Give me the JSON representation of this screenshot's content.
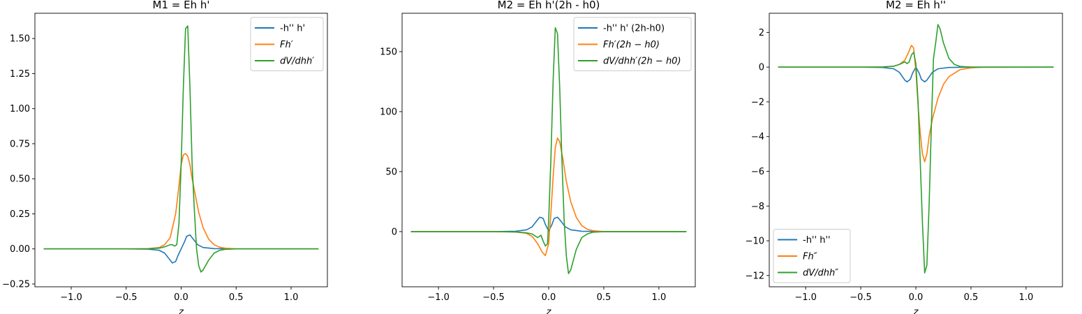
{
  "chart_data": [
    {
      "type": "line",
      "title": "M1 = Eh h'",
      "xlabel": "z",
      "ylabel": "",
      "xlim": [
        -1.33,
        1.33
      ],
      "ylim": [
        -0.27,
        1.68
      ],
      "xticks": [
        -1.0,
        -0.5,
        0.0,
        0.5,
        1.0
      ],
      "xtick_labels": [
        "−1.0",
        "−0.5",
        "0.0",
        "0.5",
        "1.0"
      ],
      "yticks": [
        -0.25,
        0.0,
        0.25,
        0.5,
        0.75,
        1.0,
        1.25,
        1.5
      ],
      "ytick_labels": [
        "−0.25",
        "0.00",
        "0.25",
        "0.50",
        "0.75",
        "1.00",
        "1.25",
        "1.50"
      ],
      "grid": false,
      "legend_position": "top-right",
      "series": [
        {
          "name": "-h'' h'",
          "color": "#1f77b4",
          "x": [
            -1.25,
            -0.5,
            -0.3,
            -0.2,
            -0.15,
            -0.1,
            -0.08,
            -0.05,
            -0.03,
            0.0,
            0.03,
            0.05,
            0.08,
            0.1,
            0.15,
            0.2,
            0.3,
            0.5,
            1.25
          ],
          "y": [
            0,
            0,
            -0.002,
            -0.01,
            -0.03,
            -0.08,
            -0.1,
            -0.09,
            -0.05,
            0,
            0.05,
            0.09,
            0.1,
            0.08,
            0.03,
            0.01,
            0.002,
            0,
            0
          ]
        },
        {
          "name": "Fh′",
          "color": "#ff7f0e",
          "x": [
            -1.25,
            -0.5,
            -0.3,
            -0.2,
            -0.15,
            -0.1,
            -0.05,
            -0.02,
            0.0,
            0.02,
            0.04,
            0.06,
            0.08,
            0.1,
            0.13,
            0.16,
            0.2,
            0.25,
            0.3,
            0.35,
            0.4,
            0.5,
            1.25
          ],
          "y": [
            0,
            0,
            0.002,
            0.01,
            0.03,
            0.08,
            0.25,
            0.45,
            0.6,
            0.67,
            0.68,
            0.66,
            0.6,
            0.5,
            0.38,
            0.26,
            0.15,
            0.07,
            0.03,
            0.012,
            0.005,
            0,
            0
          ]
        },
        {
          "name": "dV/dhh′",
          "color": "#2ca02c",
          "x": [
            -1.25,
            -0.5,
            -0.3,
            -0.2,
            -0.15,
            -0.1,
            -0.08,
            -0.06,
            -0.04,
            -0.02,
            0.0,
            0.02,
            0.04,
            0.06,
            0.08,
            0.1,
            0.12,
            0.14,
            0.16,
            0.18,
            0.2,
            0.25,
            0.3,
            0.35,
            0.4,
            0.5,
            1.25
          ],
          "y": [
            0,
            0,
            0.001,
            0.005,
            0.015,
            0.03,
            0.03,
            0.02,
            0.03,
            0.18,
            0.6,
            1.15,
            1.57,
            1.59,
            1.15,
            0.6,
            0.28,
            0.0,
            -0.12,
            -0.165,
            -0.15,
            -0.08,
            -0.03,
            -0.01,
            -0.003,
            0,
            0
          ]
        }
      ]
    },
    {
      "type": "line",
      "title": "M2 = Eh h'(2h - h0)",
      "xlabel": "z",
      "ylabel": "",
      "xlim": [
        -1.33,
        1.33
      ],
      "ylim": [
        -46,
        182
      ],
      "xticks": [
        -1.0,
        -0.5,
        0.0,
        0.5,
        1.0
      ],
      "xtick_labels": [
        "−1.0",
        "−0.5",
        "0.0",
        "0.5",
        "1.0"
      ],
      "yticks": [
        0,
        50,
        100,
        150
      ],
      "ytick_labels": [
        "0",
        "50",
        "100",
        "150"
      ],
      "grid": false,
      "legend_position": "top-right",
      "series": [
        {
          "name": "-h'' h' (2h-h0)",
          "color": "#1f77b4",
          "x": [
            -1.25,
            -0.5,
            -0.3,
            -0.2,
            -0.15,
            -0.1,
            -0.08,
            -0.05,
            -0.03,
            0.0,
            0.03,
            0.05,
            0.08,
            0.1,
            0.15,
            0.2,
            0.3,
            0.5,
            1.25
          ],
          "y": [
            0,
            0,
            0.3,
            1.5,
            4,
            10,
            12,
            11,
            6,
            0.5,
            6,
            11,
            12,
            10,
            4,
            1.5,
            0.3,
            0,
            0
          ]
        },
        {
          "name": "Fh′(2h − h0)",
          "color": "#ff7f0e",
          "x": [
            -1.25,
            -0.5,
            -0.3,
            -0.2,
            -0.15,
            -0.1,
            -0.06,
            -0.03,
            0.0,
            0.02,
            0.04,
            0.06,
            0.08,
            0.1,
            0.13,
            0.16,
            0.2,
            0.25,
            0.3,
            0.35,
            0.4,
            0.5,
            1.25
          ],
          "y": [
            0,
            0,
            -0.3,
            -1.5,
            -4,
            -10,
            -17,
            -20,
            -10,
            15,
            45,
            70,
            78,
            75,
            60,
            42,
            25,
            12,
            5,
            2,
            0.8,
            0,
            0
          ]
        },
        {
          "name": "dV/dhh′(2h − h0)",
          "color": "#2ca02c",
          "x": [
            -1.25,
            -0.5,
            -0.3,
            -0.2,
            -0.15,
            -0.1,
            -0.07,
            -0.05,
            -0.03,
            -0.01,
            0.0,
            0.02,
            0.04,
            0.06,
            0.08,
            0.1,
            0.12,
            0.14,
            0.16,
            0.18,
            0.2,
            0.25,
            0.3,
            0.35,
            0.4,
            0.5,
            1.25
          ],
          "y": [
            0,
            0,
            -0.3,
            -1,
            -2,
            -5,
            -3,
            -8,
            -12,
            -10,
            10,
            60,
            125,
            170,
            165,
            120,
            60,
            10,
            -20,
            -35,
            -32,
            -15,
            -5,
            -2,
            -0.5,
            0,
            0
          ]
        }
      ]
    },
    {
      "type": "line",
      "title": "M2 = Eh h''",
      "xlabel": "z",
      "ylabel": "",
      "xlim": [
        -1.33,
        1.33
      ],
      "ylim": [
        -12.65,
        3.1
      ],
      "xticks": [
        -1.0,
        -0.5,
        0.0,
        0.5,
        1.0
      ],
      "xtick_labels": [
        "−1.0",
        "−0.5",
        "0.0",
        "0.5",
        "1.0"
      ],
      "yticks": [
        -12,
        -10,
        -8,
        -6,
        -4,
        -2,
        0,
        2
      ],
      "ytick_labels": [
        "−12",
        "−10",
        "−8",
        "−6",
        "−4",
        "−2",
        "0",
        "2"
      ],
      "grid": false,
      "legend_position": "bottom-left",
      "series": [
        {
          "name": "-h'' h''",
          "color": "#1f77b4",
          "x": [
            -1.25,
            -0.5,
            -0.3,
            -0.2,
            -0.15,
            -0.1,
            -0.08,
            -0.05,
            -0.03,
            0.0,
            0.03,
            0.05,
            0.08,
            0.1,
            0.15,
            0.2,
            0.3,
            0.5,
            1.25
          ],
          "y": [
            0,
            0,
            -0.02,
            -0.1,
            -0.3,
            -0.75,
            -0.85,
            -0.7,
            -0.35,
            0,
            -0.35,
            -0.7,
            -0.85,
            -0.75,
            -0.3,
            -0.1,
            -0.02,
            0,
            0
          ]
        },
        {
          "name": "Fh″",
          "color": "#ff7f0e",
          "x": [
            -1.25,
            -0.5,
            -0.3,
            -0.2,
            -0.15,
            -0.1,
            -0.07,
            -0.04,
            -0.02,
            0.0,
            0.02,
            0.04,
            0.06,
            0.08,
            0.1,
            0.12,
            0.15,
            0.2,
            0.25,
            0.3,
            0.4,
            0.5,
            0.6,
            1.25
          ],
          "y": [
            0,
            0,
            0.01,
            0.05,
            0.15,
            0.4,
            0.8,
            1.25,
            1.1,
            -0.2,
            -2.2,
            -3.8,
            -5.0,
            -5.45,
            -5.0,
            -4.0,
            -3.0,
            -1.8,
            -1.0,
            -0.55,
            -0.15,
            -0.04,
            -0.01,
            0
          ]
        },
        {
          "name": "dV/dhh″",
          "color": "#2ca02c",
          "x": [
            -1.25,
            -0.5,
            -0.3,
            -0.2,
            -0.15,
            -0.1,
            -0.08,
            -0.06,
            -0.04,
            -0.02,
            0.0,
            0.02,
            0.04,
            0.06,
            0.08,
            0.1,
            0.12,
            0.14,
            0.16,
            0.18,
            0.2,
            0.22,
            0.25,
            0.3,
            0.35,
            0.4,
            0.5,
            1.25
          ],
          "y": [
            0,
            0,
            0.01,
            0.05,
            0.15,
            0.3,
            0.2,
            0.3,
            0.7,
            0.85,
            0.2,
            -2.0,
            -5.5,
            -9.0,
            -11.85,
            -11.4,
            -8.0,
            -3.5,
            0.5,
            1.4,
            2.45,
            2.2,
            1.4,
            0.5,
            0.15,
            0.04,
            0,
            0
          ]
        }
      ]
    }
  ]
}
